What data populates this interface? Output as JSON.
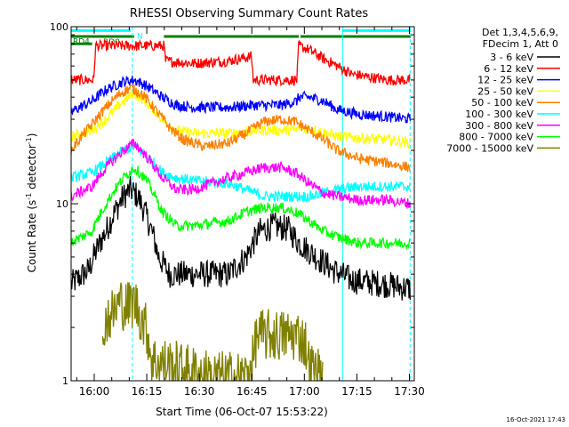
{
  "chart_data": {
    "type": "line",
    "title": "RHESSI Observing Summary Count Rates",
    "xlabel": "Start Time (06-Oct-07 15:53:22)",
    "ylabel_main": "Count Rate (s",
    "ylabel_sup": "-1",
    "ylabel_tail": " detector",
    "ylabel_sup2": "-1",
    "ylabel_close": ")",
    "y_scale": "log",
    "ylim": [
      1,
      100
    ],
    "xlim_minutes": [
      0,
      98
    ],
    "x_ticks": [
      {
        "label": "16:00",
        "minute": 6.6
      },
      {
        "label": "16:15",
        "minute": 21.6
      },
      {
        "label": "16:30",
        "minute": 36.6
      },
      {
        "label": "16:45",
        "minute": 51.6
      },
      {
        "label": "17:00",
        "minute": 66.6
      },
      {
        "label": "17:15",
        "minute": 81.6
      },
      {
        "label": "17:30",
        "minute": 96.6
      }
    ],
    "y_tick_labels": [
      {
        "label": "100",
        "value": 100
      },
      {
        "label": "10",
        "value": 10
      },
      {
        "label": "1",
        "value": 1
      }
    ],
    "legend": {
      "header1": "Det 1,3,4,5,6,9,",
      "header2": "FDecim 1, Att 0",
      "placement": "right"
    },
    "flags": [
      {
        "label": "N",
        "color": "#00ffff",
        "start": 0,
        "end": 17,
        "y": 95
      },
      {
        "label": "RD0",
        "color": "#008000",
        "start": 0,
        "end": 18,
        "y": 88
      },
      {
        "label": "RD4",
        "color": "#008000",
        "start": 0,
        "end": 6,
        "y": 80
      }
    ],
    "green_segments": [
      [
        26.5,
        52
      ],
      [
        52,
        65
      ],
      [
        65.5,
        97
      ]
    ],
    "cyan_segments": [
      [
        77.5,
        97
      ]
    ],
    "vlines_solid_cyan": [
      0,
      77.5
    ],
    "vlines_dashed_cyan": [
      17.5,
      96.8
    ],
    "series": [
      {
        "name": "3 - 6 keV",
        "color": "#000000",
        "points": [
          [
            0,
            3.5
          ],
          [
            5,
            4.2
          ],
          [
            10,
            7
          ],
          [
            15,
            11
          ],
          [
            17,
            12
          ],
          [
            19,
            11
          ],
          [
            22,
            8
          ],
          [
            25,
            5
          ],
          [
            28,
            4
          ],
          [
            35,
            4
          ],
          [
            45,
            4
          ],
          [
            50,
            5
          ],
          [
            54,
            7
          ],
          [
            58,
            7.5
          ],
          [
            62,
            7.2
          ],
          [
            65,
            6
          ],
          [
            70,
            5
          ],
          [
            75,
            4.2
          ],
          [
            80,
            3.7
          ],
          [
            90,
            3.5
          ],
          [
            97,
            3.3
          ]
        ]
      },
      {
        "name": "6 - 12 keV",
        "color": "#ff0000",
        "points": [
          [
            0,
            50
          ],
          [
            5,
            50
          ],
          [
            6.5,
            50
          ],
          [
            7,
            78
          ],
          [
            26.5,
            78
          ],
          [
            27,
            64
          ],
          [
            35,
            62
          ],
          [
            45,
            64
          ],
          [
            51.5,
            68
          ],
          [
            52,
            50
          ],
          [
            64.5,
            50
          ],
          [
            65,
            78
          ],
          [
            68,
            74
          ],
          [
            72,
            66
          ],
          [
            76,
            60
          ],
          [
            80,
            54
          ],
          [
            90,
            50
          ],
          [
            97,
            50
          ]
        ]
      },
      {
        "name": "12 - 25 keV",
        "color": "#0000ff",
        "points": [
          [
            0,
            33
          ],
          [
            6,
            38
          ],
          [
            10,
            44
          ],
          [
            15,
            49
          ],
          [
            18,
            50
          ],
          [
            21,
            47
          ],
          [
            26,
            40
          ],
          [
            30,
            36
          ],
          [
            35,
            35
          ],
          [
            45,
            35
          ],
          [
            52,
            36
          ],
          [
            60,
            36
          ],
          [
            64.5,
            38
          ],
          [
            65,
            40
          ],
          [
            68,
            40
          ],
          [
            72,
            38
          ],
          [
            76,
            34
          ],
          [
            82,
            32
          ],
          [
            90,
            31
          ],
          [
            97,
            30
          ]
        ]
      },
      {
        "name": "25 - 50 keV",
        "color": "#ffff00",
        "points": [
          [
            0,
            24
          ],
          [
            6,
            26
          ],
          [
            10,
            30
          ],
          [
            15,
            38
          ],
          [
            18,
            42
          ],
          [
            21,
            38
          ],
          [
            26,
            30
          ],
          [
            30,
            26
          ],
          [
            35,
            25
          ],
          [
            45,
            25
          ],
          [
            52,
            26
          ],
          [
            60,
            26
          ],
          [
            64.5,
            26
          ],
          [
            65,
            27
          ],
          [
            70,
            26
          ],
          [
            76,
            24
          ],
          [
            82,
            23.5
          ],
          [
            90,
            23
          ],
          [
            97,
            22
          ]
        ]
      },
      {
        "name": "50 - 100 keV",
        "color": "#ff8000",
        "points": [
          [
            0,
            20
          ],
          [
            6,
            28
          ],
          [
            10,
            35
          ],
          [
            14,
            42
          ],
          [
            17,
            45
          ],
          [
            20,
            42
          ],
          [
            24,
            34
          ],
          [
            28,
            27
          ],
          [
            32,
            23
          ],
          [
            38,
            21
          ],
          [
            45,
            22
          ],
          [
            50,
            25
          ],
          [
            55,
            29
          ],
          [
            60,
            30
          ],
          [
            64,
            29
          ],
          [
            68,
            26
          ],
          [
            72,
            23
          ],
          [
            76,
            20
          ],
          [
            82,
            18
          ],
          [
            90,
            17
          ],
          [
            97,
            16
          ]
        ]
      },
      {
        "name": "100 - 300 keV",
        "color": "#00ffff",
        "points": [
          [
            0,
            14
          ],
          [
            6,
            15
          ],
          [
            10,
            17
          ],
          [
            15,
            20
          ],
          [
            18,
            21
          ],
          [
            21,
            19
          ],
          [
            26,
            15
          ],
          [
            30,
            14
          ],
          [
            35,
            13.5
          ],
          [
            45,
            13
          ],
          [
            50,
            12
          ],
          [
            55,
            11
          ],
          [
            60,
            11
          ],
          [
            64,
            11
          ],
          [
            68,
            11
          ],
          [
            72,
            11.5
          ],
          [
            76,
            12
          ],
          [
            82,
            12.5
          ],
          [
            90,
            12.5
          ],
          [
            97,
            12.5
          ]
        ]
      },
      {
        "name": "300 - 800 keV",
        "color": "#ff00ff",
        "points": [
          [
            0,
            11
          ],
          [
            6,
            12.5
          ],
          [
            10,
            16
          ],
          [
            15,
            20
          ],
          [
            18,
            22
          ],
          [
            21,
            19
          ],
          [
            26,
            14
          ],
          [
            30,
            12
          ],
          [
            35,
            12
          ],
          [
            45,
            14
          ],
          [
            50,
            15
          ],
          [
            55,
            16
          ],
          [
            60,
            16
          ],
          [
            64,
            15
          ],
          [
            68,
            13
          ],
          [
            72,
            11.5
          ],
          [
            76,
            11
          ],
          [
            82,
            10.5
          ],
          [
            90,
            10.5
          ],
          [
            97,
            10
          ]
        ]
      },
      {
        "name": "800 - 7000 keV",
        "color": "#00ff00",
        "points": [
          [
            0,
            6
          ],
          [
            6,
            7
          ],
          [
            10,
            10
          ],
          [
            15,
            14
          ],
          [
            18,
            16
          ],
          [
            21,
            14
          ],
          [
            26,
            9
          ],
          [
            30,
            7.5
          ],
          [
            35,
            7.5
          ],
          [
            45,
            8
          ],
          [
            50,
            9
          ],
          [
            55,
            9.5
          ],
          [
            60,
            9.5
          ],
          [
            64,
            9
          ],
          [
            68,
            8
          ],
          [
            72,
            7
          ],
          [
            76,
            6.5
          ],
          [
            82,
            6
          ],
          [
            90,
            6
          ],
          [
            97,
            6
          ]
        ]
      },
      {
        "name": "7000 - 15000 keV",
        "color": "#808000",
        "points": [
          [
            9,
            1.4
          ],
          [
            9.5,
            2.2
          ],
          [
            12,
            2.4
          ],
          [
            14,
            2.8
          ],
          [
            16,
            2.6
          ],
          [
            18,
            2.8
          ],
          [
            20,
            2.3
          ],
          [
            22,
            1.8
          ],
          [
            23,
            1.3
          ],
          [
            40,
            1.05
          ],
          [
            50,
            1.05
          ],
          [
            52,
            1.3
          ],
          [
            53,
            1.8
          ],
          [
            55,
            1.8
          ],
          [
            60,
            1.8
          ],
          [
            65,
            1.8
          ],
          [
            67,
            1.6
          ],
          [
            68,
            1.2
          ],
          [
            72,
            1.05
          ]
        ]
      }
    ]
  },
  "footer": {
    "timestamp": "16-Oct-2021 17:43"
  }
}
